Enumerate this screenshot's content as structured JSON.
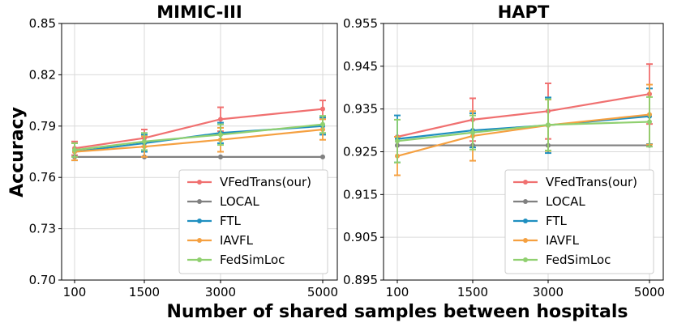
{
  "figure": {
    "ylabel": "Accuracy",
    "xlabel": "Number of shared samples between hospitals"
  },
  "chart_data": [
    {
      "type": "line",
      "title": "MIMIC-III",
      "xlabel": "Number of shared samples between hospitals",
      "ylabel": "Accuracy",
      "x": [
        100,
        1500,
        3000,
        5000
      ],
      "xticks": [
        "100",
        "1500",
        "3000",
        "5000"
      ],
      "ylim": [
        0.7,
        0.85
      ],
      "yticks": [
        "0.70",
        "0.73",
        "0.76",
        "0.79",
        "0.82",
        "0.85"
      ],
      "grid": true,
      "legend_position": "bottom-right",
      "series": [
        {
          "name": "VFedTrans(our)",
          "color": "#f07070",
          "values": [
            0.777,
            0.783,
            0.794,
            0.8
          ],
          "errors": [
            0.004,
            0.005,
            0.007,
            0.005
          ]
        },
        {
          "name": "LOCAL",
          "color": "#808080",
          "values": [
            0.772,
            0.772,
            0.772,
            0.772
          ],
          "errors": [
            0.0,
            0.0,
            0.0,
            0.0
          ]
        },
        {
          "name": "FTL",
          "color": "#1f8fc0",
          "values": [
            0.775,
            0.78,
            0.786,
            0.79
          ],
          "errors": [
            0.005,
            0.005,
            0.006,
            0.005
          ]
        },
        {
          "name": "IAVFL",
          "color": "#f5a040",
          "values": [
            0.775,
            0.778,
            0.782,
            0.788
          ],
          "errors": [
            0.005,
            0.006,
            0.007,
            0.006
          ]
        },
        {
          "name": "FedSimLoc",
          "color": "#90d070",
          "values": [
            0.776,
            0.781,
            0.785,
            0.791
          ],
          "errors": [
            0.004,
            0.005,
            0.006,
            0.005
          ]
        }
      ]
    },
    {
      "type": "line",
      "title": "HAPT",
      "xlabel": "Number of shared samples between hospitals",
      "ylabel": "",
      "x": [
        100,
        1500,
        3000,
        5000
      ],
      "xticks": [
        "100",
        "1500",
        "3000",
        "5000"
      ],
      "ylim": [
        0.895,
        0.955
      ],
      "yticks": [
        "0.895",
        "0.905",
        "0.915",
        "0.925",
        "0.935",
        "0.945",
        "0.955"
      ],
      "grid": true,
      "legend_position": "bottom-right",
      "series": [
        {
          "name": "VFedTrans(our)",
          "color": "#f07070",
          "values": [
            0.9285,
            0.9325,
            0.9345,
            0.9385
          ],
          "errors": [
            0.0,
            0.005,
            0.0065,
            0.007
          ]
        },
        {
          "name": "LOCAL",
          "color": "#808080",
          "values": [
            0.9265,
            0.9265,
            0.9265,
            0.9265
          ],
          "errors": [
            0.0,
            0.0,
            0.0,
            0.0
          ]
        },
        {
          "name": "FTL",
          "color": "#1f8fc0",
          "values": [
            0.928,
            0.93,
            0.9312,
            0.9333
          ],
          "errors": [
            0.0055,
            0.004,
            0.0065,
            0.0065
          ]
        },
        {
          "name": "IAVFL",
          "color": "#f5a040",
          "values": [
            0.924,
            0.9287,
            0.9312,
            0.9337
          ],
          "errors": [
            0.0045,
            0.0058,
            0.006,
            0.007
          ]
        },
        {
          "name": "FedSimLoc",
          "color": "#90d070",
          "values": [
            0.9275,
            0.9295,
            0.9313,
            0.932
          ],
          "errors": [
            0.005,
            0.004,
            0.006,
            0.0058
          ]
        }
      ]
    }
  ]
}
